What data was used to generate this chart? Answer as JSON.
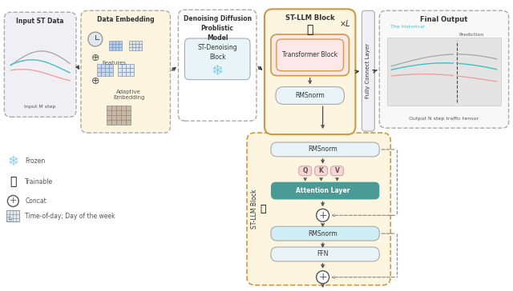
{
  "bg_color": "#ffffff",
  "colors": {
    "box_outline": "#555555",
    "dashed_outline": "#888888",
    "arrow": "#444444",
    "light_yellow": "#fdf5e0",
    "light_blue_box": "#e8f4f8",
    "teal": "#4a9a96",
    "pink_light": "#f9d5d5",
    "light_gray_bg": "#f0f0f0",
    "light_blue2": "#d0eef5",
    "input_bg": "#e8eaf0",
    "frozen_blue": "#87ceeb",
    "text_color": "#333333",
    "white": "#ffffff"
  },
  "legend": {
    "frozen_text": "Frozen",
    "trainable_text": "Trainable",
    "concat_text": "Concat",
    "time_text": "Time-of-day; Day of the week"
  }
}
